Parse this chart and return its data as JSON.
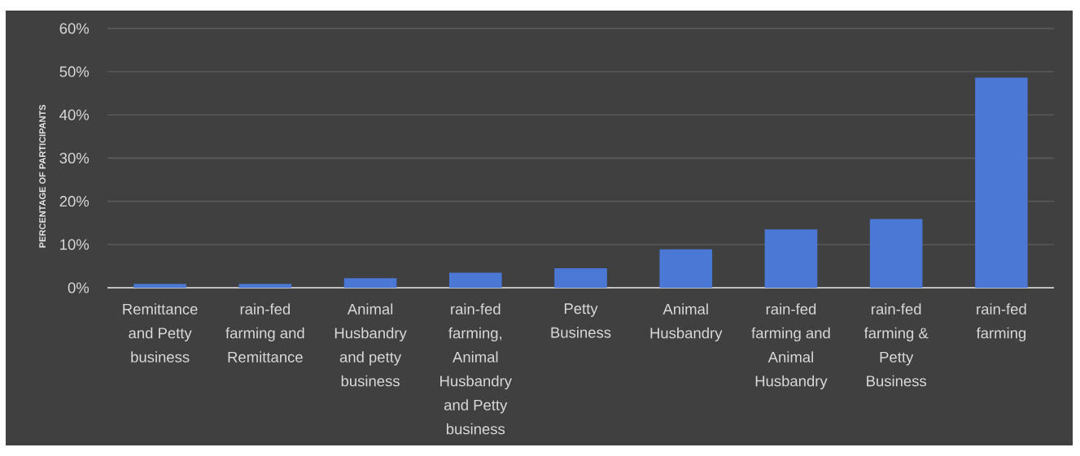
{
  "chart_data": {
    "type": "bar",
    "ylabel": "PERCENTAGE OF PARTICIPANTS",
    "categories": [
      "Remittance and Petty business",
      "rain-fed farming and Remittance",
      "Animal Husbandry and petty business",
      "rain-fed farming, Animal Husbandry and Petty business",
      "Petty Business",
      "Animal Husbandry",
      "rain-fed farming and Animal Husbandry",
      "rain-fed farming & Petty Business",
      "rain-fed farming"
    ],
    "values": [
      0.9,
      0.9,
      2.2,
      3.5,
      4.5,
      8.9,
      13.5,
      15.9,
      48.6
    ],
    "color": "#4a78d4",
    "ylim": [
      0,
      60
    ],
    "yticks": [
      {
        "value": 0,
        "label": "0%"
      },
      {
        "value": 10,
        "label": "10%"
      },
      {
        "value": 20,
        "label": "20%"
      },
      {
        "value": 30,
        "label": "30%"
      },
      {
        "value": 40,
        "label": "40%"
      },
      {
        "value": 50,
        "label": "50%"
      },
      {
        "value": 60,
        "label": "60%"
      }
    ],
    "grid": "y"
  }
}
